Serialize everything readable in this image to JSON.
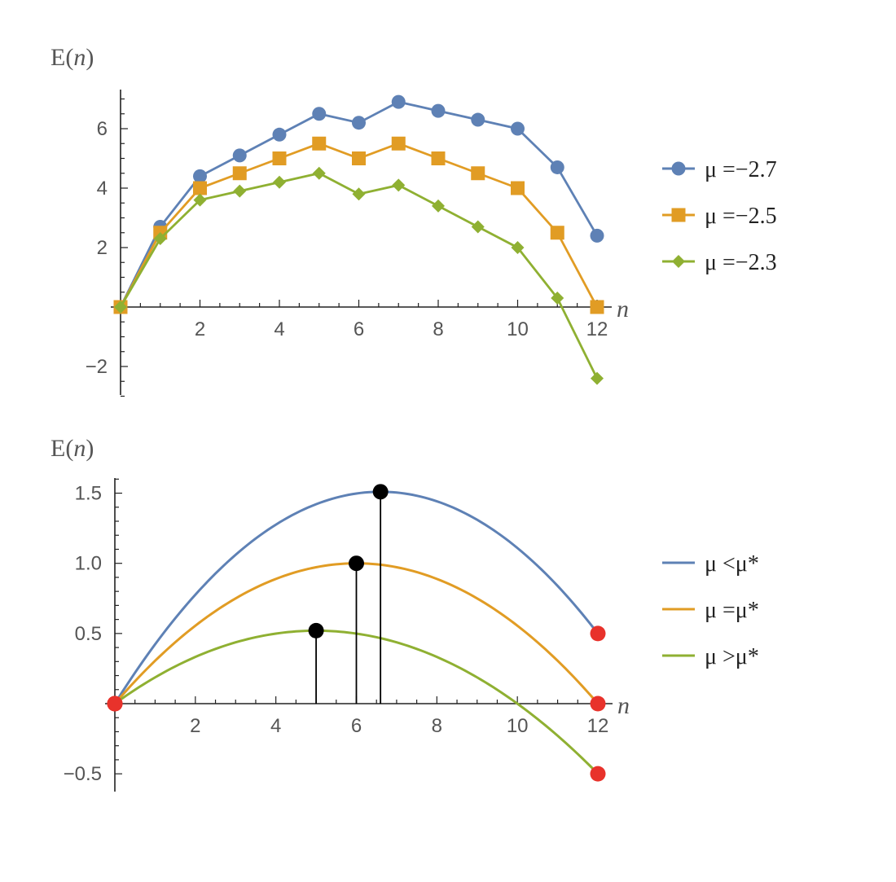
{
  "chart_data": [
    {
      "type": "line",
      "ylabel": "E(n)",
      "xlabel": "n",
      "xlim": [
        0,
        12
      ],
      "ylim": [
        -3,
        7.3
      ],
      "xticks": [
        2,
        4,
        6,
        8,
        10,
        12
      ],
      "yticks": [
        -2,
        2,
        4,
        6
      ],
      "legend_position": "right",
      "x": [
        0,
        1,
        2,
        3,
        4,
        5,
        6,
        7,
        8,
        9,
        10,
        11,
        12
      ],
      "series": [
        {
          "name": "μ =−2.7",
          "marker": "circle",
          "color": "#5E81B5",
          "values": [
            0,
            2.7,
            4.4,
            5.1,
            5.8,
            6.5,
            6.2,
            6.9,
            6.6,
            6.3,
            6.0,
            4.7,
            2.4
          ]
        },
        {
          "name": "μ =−2.5",
          "marker": "square",
          "color": "#E19C24",
          "values": [
            0,
            2.5,
            4.0,
            4.5,
            5.0,
            5.5,
            5.0,
            5.5,
            5.0,
            4.5,
            4.0,
            2.5,
            0
          ]
        },
        {
          "name": "μ =−2.3",
          "marker": "diamond",
          "color": "#8FB032",
          "values": [
            0,
            2.3,
            3.6,
            3.9,
            4.2,
            4.5,
            3.8,
            4.1,
            3.4,
            2.7,
            2.0,
            0.3,
            -2.4
          ]
        }
      ]
    },
    {
      "type": "line",
      "ylabel": "E(n)",
      "xlabel": "n",
      "xlim": [
        0,
        12
      ],
      "ylim": [
        -0.6,
        1.62
      ],
      "xticks": [
        2,
        4,
        6,
        8,
        10,
        12
      ],
      "yticks": [
        -0.5,
        0.5,
        1.0,
        1.5
      ],
      "ytick_labels": [
        "−0.5",
        "0.5",
        "1.0",
        "1.5"
      ],
      "legend_position": "right",
      "series": [
        {
          "name": "μ <μ*",
          "color": "#5E81B5",
          "curve": {
            "peak_x": 6.6,
            "peak_y": 1.51,
            "end_y": 0.5
          },
          "maximum": [
            6.6,
            1.51
          ],
          "endpoints": [
            [
              0,
              0
            ],
            [
              12,
              0.5
            ]
          ]
        },
        {
          "name": "μ =μ*",
          "color": "#E19C24",
          "curve": {
            "peak_x": 6.0,
            "peak_y": 1.0,
            "end_y": 0
          },
          "maximum": [
            6.0,
            1.0
          ],
          "endpoints": [
            [
              0,
              0
            ],
            [
              12,
              0
            ]
          ]
        },
        {
          "name": "μ >μ*",
          "color": "#8FB032",
          "curve": {
            "peak_x": 5.0,
            "peak_y": 0.52,
            "end_y": -0.5
          },
          "maximum": [
            5.0,
            0.52
          ],
          "endpoints": [
            [
              0,
              0
            ],
            [
              12,
              -0.5
            ]
          ]
        }
      ],
      "marker_colors": {
        "maximum": "#000000",
        "endpoint": "#E8322B"
      }
    }
  ]
}
